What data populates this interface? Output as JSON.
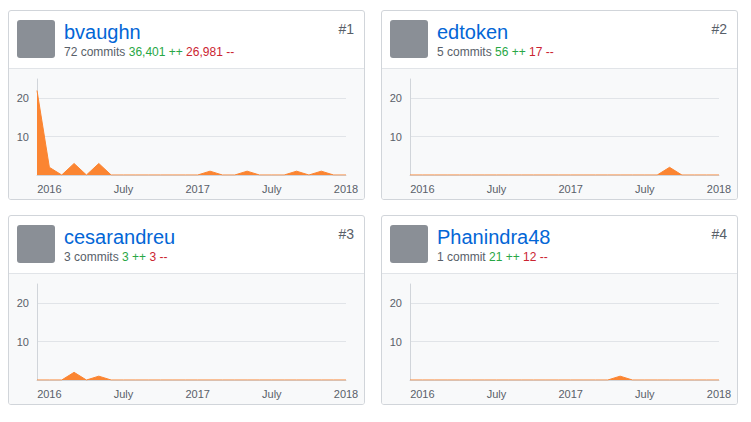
{
  "chart_data": [
    {
      "type": "area",
      "title": "bvaughn",
      "rank": "#1",
      "commits": "72 commits",
      "additions": "36,401 ++",
      "deletions": "26,981 --",
      "categories": [
        null,
        "2016",
        null,
        null,
        null,
        null,
        null,
        "July",
        null,
        null,
        null,
        null,
        null,
        "2017",
        null,
        null,
        null,
        null,
        null,
        "July",
        null,
        null,
        null,
        null,
        null,
        "2018"
      ],
      "values": [
        22,
        2,
        0,
        3,
        0,
        3,
        0,
        0,
        0,
        0,
        0,
        0,
        0,
        0,
        1,
        0,
        0,
        1,
        0,
        0,
        0,
        1,
        0,
        1,
        0,
        0
      ],
      "color": "#fb8532",
      "ylim": [
        0,
        25
      ],
      "yticks": [
        10,
        20
      ],
      "grid": true
    },
    {
      "type": "area",
      "title": "edtoken",
      "rank": "#2",
      "commits": "5 commits",
      "additions": "56 ++",
      "deletions": "17 --",
      "categories": [
        null,
        "2016",
        null,
        null,
        null,
        null,
        null,
        "July",
        null,
        null,
        null,
        null,
        null,
        "2017",
        null,
        null,
        null,
        null,
        null,
        "July",
        null,
        null,
        null,
        null,
        null,
        "2018"
      ],
      "values": [
        0,
        0,
        0,
        0,
        0,
        0,
        0,
        0,
        0,
        0,
        0,
        0,
        0,
        0,
        0,
        0,
        0,
        0,
        0,
        0,
        0,
        2,
        0,
        0,
        0,
        0
      ],
      "color": "#fb8532",
      "ylim": [
        0,
        25
      ],
      "yticks": [
        10,
        20
      ],
      "grid": true
    },
    {
      "type": "area",
      "title": "cesarandreu",
      "rank": "#3",
      "commits": "3 commits",
      "additions": "3 ++",
      "deletions": "3 --",
      "categories": [
        null,
        "2016",
        null,
        null,
        null,
        null,
        null,
        "July",
        null,
        null,
        null,
        null,
        null,
        "2017",
        null,
        null,
        null,
        null,
        null,
        "July",
        null,
        null,
        null,
        null,
        null,
        "2018"
      ],
      "values": [
        0,
        0,
        0,
        2,
        0,
        1,
        0,
        0,
        0,
        0,
        0,
        0,
        0,
        0,
        0,
        0,
        0,
        0,
        0,
        0,
        0,
        0,
        0,
        0,
        0,
        0
      ],
      "color": "#fb8532",
      "ylim": [
        0,
        25
      ],
      "yticks": [
        10,
        20
      ],
      "grid": true
    },
    {
      "type": "area",
      "title": "Phanindra48",
      "rank": "#4",
      "commits": "1 commit",
      "additions": "21 ++",
      "deletions": "12 --",
      "categories": [
        null,
        "2016",
        null,
        null,
        null,
        null,
        null,
        "July",
        null,
        null,
        null,
        null,
        null,
        "2017",
        null,
        null,
        null,
        null,
        null,
        "July",
        null,
        null,
        null,
        null,
        null,
        "2018"
      ],
      "values": [
        0,
        0,
        0,
        0,
        0,
        0,
        0,
        0,
        0,
        0,
        0,
        0,
        0,
        0,
        0,
        0,
        0,
        1,
        0,
        0,
        0,
        0,
        0,
        0,
        0,
        0
      ],
      "color": "#fb8532",
      "ylim": [
        0,
        25
      ],
      "yticks": [
        10,
        20
      ],
      "grid": true
    }
  ]
}
